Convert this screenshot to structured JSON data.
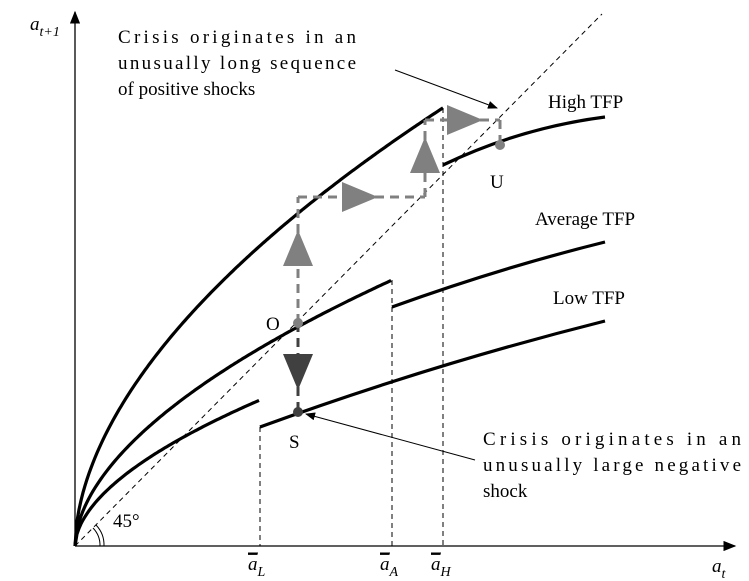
{
  "y_axis_label": {
    "base": "a",
    "sub": "t+1"
  },
  "x_axis_label": {
    "base": "a",
    "sub": "t"
  },
  "angle_label": "45°",
  "curves": {
    "high": "High TFP",
    "average": "Average TFP",
    "low": "Low TFP"
  },
  "points": {
    "o": "O",
    "s": "S",
    "u": "U"
  },
  "thresholds": [
    {
      "base": "a",
      "sub": "L"
    },
    {
      "base": "a",
      "sub": "A"
    },
    {
      "base": "a",
      "sub": "H"
    }
  ],
  "note_top": [
    "Crisis originates in an",
    "unusually long sequence",
    "of positive shocks"
  ],
  "note_bottom": [
    "Crisis originates in an",
    "unusually large negative",
    "shock"
  ]
}
